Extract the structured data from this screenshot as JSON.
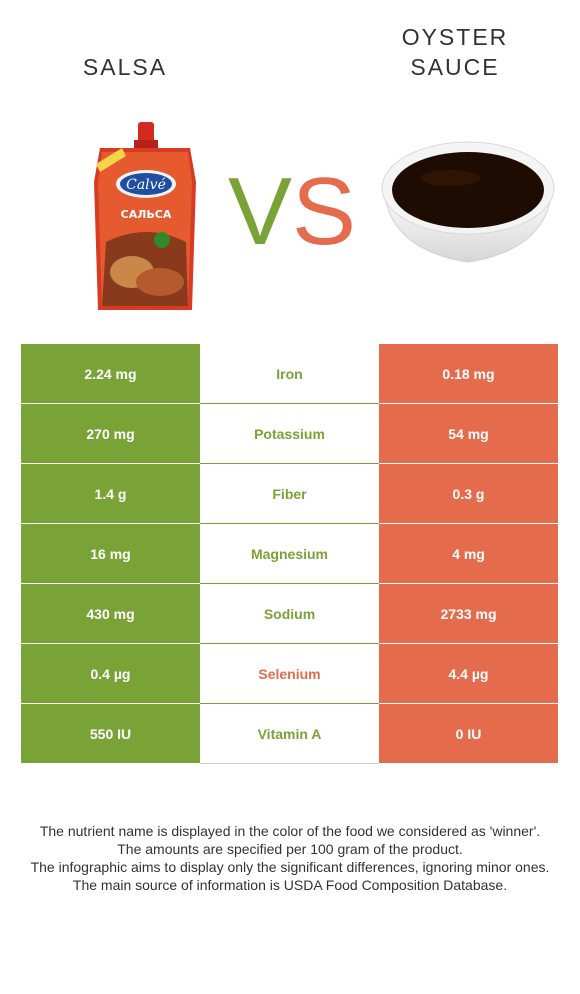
{
  "left_food": {
    "name": "SALSA"
  },
  "right_food": {
    "name_line1": "OYSTER",
    "name_line2": "SAUCE"
  },
  "vs": {
    "v": "V",
    "s": "S"
  },
  "colors": {
    "winner_left": "#7aa337",
    "winner_right": "#e46b4c"
  },
  "nutrients": [
    {
      "name": "Iron",
      "left": "2.24 mg",
      "right": "0.18 mg",
      "winner": "left"
    },
    {
      "name": "Potassium",
      "left": "270 mg",
      "right": "54 mg",
      "winner": "left"
    },
    {
      "name": "Fiber",
      "left": "1.4 g",
      "right": "0.3 g",
      "winner": "left"
    },
    {
      "name": "Magnesium",
      "left": "16 mg",
      "right": "4 mg",
      "winner": "left"
    },
    {
      "name": "Sodium",
      "left": "430 mg",
      "right": "2733 mg",
      "winner": "left"
    },
    {
      "name": "Selenium",
      "left": "0.4 µg",
      "right": "4.4 µg",
      "winner": "right"
    },
    {
      "name": "Vitamin A",
      "left": "550 IU",
      "right": "0 IU",
      "winner": "left"
    }
  ],
  "footer": {
    "line1": "The nutrient name is displayed in the color of the food we considered as 'winner'.",
    "line2": "The amounts are specified per 100 gram of the product.",
    "line3": "The infographic aims to display only the significant differences, ignoring minor ones.",
    "line4": "The main source of information is USDA Food Composition Database."
  }
}
